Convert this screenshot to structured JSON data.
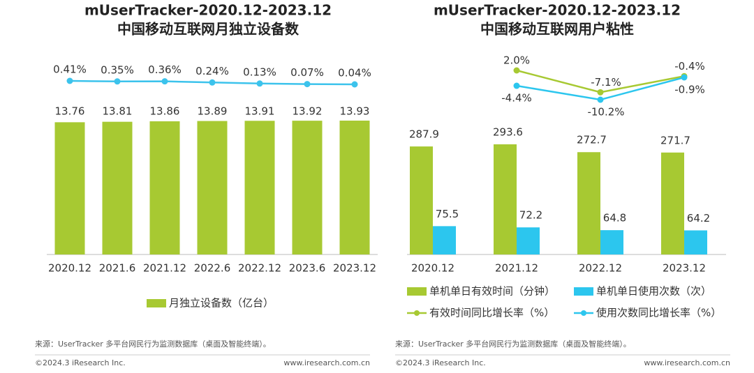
{
  "chart_data": [
    {
      "type": "bar",
      "title": "mUserTracker-2020.12-2023.12",
      "subtitle": "中国移动互联网月独立设备数",
      "categories": [
        "2020.12",
        "2021.6",
        "2021.12",
        "2022.6",
        "2022.12",
        "2023.6",
        "2023.12"
      ],
      "series": [
        {
          "type": "bar",
          "name": "月独立设备数（亿台）",
          "color": "#a7c932",
          "values": [
            13.76,
            13.81,
            13.86,
            13.89,
            13.91,
            13.92,
            13.93
          ]
        },
        {
          "type": "line",
          "color": "#3cc3ec",
          "values": [
            0.41,
            0.35,
            0.36,
            0.24,
            0.13,
            0.07,
            0.04
          ],
          "value_labels": [
            "0.41%",
            "0.35%",
            "0.36%",
            "0.24%",
            "0.13%",
            "0.07%",
            "0.04%"
          ]
        }
      ],
      "source": "来源：UserTracker 多平台网民行为监测数据库（桌面及智能终端）。",
      "copyright": "©2024.3 iResearch Inc.",
      "website": "www.iresearch.com.cn"
    },
    {
      "type": "bar",
      "title": "mUserTracker-2020.12-2023.12",
      "subtitle": "中国移动互联网用户粘性",
      "categories": [
        "2020.12",
        "2021.12",
        "2022.12",
        "2023.12"
      ],
      "series": [
        {
          "type": "bar",
          "name": "单机单日有效时间（分钟）",
          "color": "#a7c932",
          "values": [
            287.9,
            293.6,
            272.7,
            271.7
          ]
        },
        {
          "type": "bar",
          "name": "单机单日使用次数（次）",
          "color": "#2cc6ee",
          "values": [
            75.5,
            72.2,
            64.8,
            64.2
          ]
        },
        {
          "type": "line",
          "name": "有效时间同比增长率（%）",
          "color": "#a7c932",
          "values": [
            null,
            2.0,
            -7.1,
            -0.4
          ],
          "value_labels": [
            null,
            "2.0%",
            "-7.1%",
            "-0.4%"
          ]
        },
        {
          "type": "line",
          "name": "使用次数同比增长率（%）",
          "color": "#2cc6ee",
          "values": [
            null,
            -4.4,
            -10.2,
            -0.9
          ],
          "value_labels": [
            null,
            "-4.4%",
            "-10.2%",
            "-0.9%"
          ]
        }
      ],
      "source": "来源：UserTracker 多平台网民行为监测数据库（桌面及智能终端）。",
      "copyright": "©2024.3 iResearch Inc.",
      "website": "www.iresearch.com.cn"
    }
  ]
}
